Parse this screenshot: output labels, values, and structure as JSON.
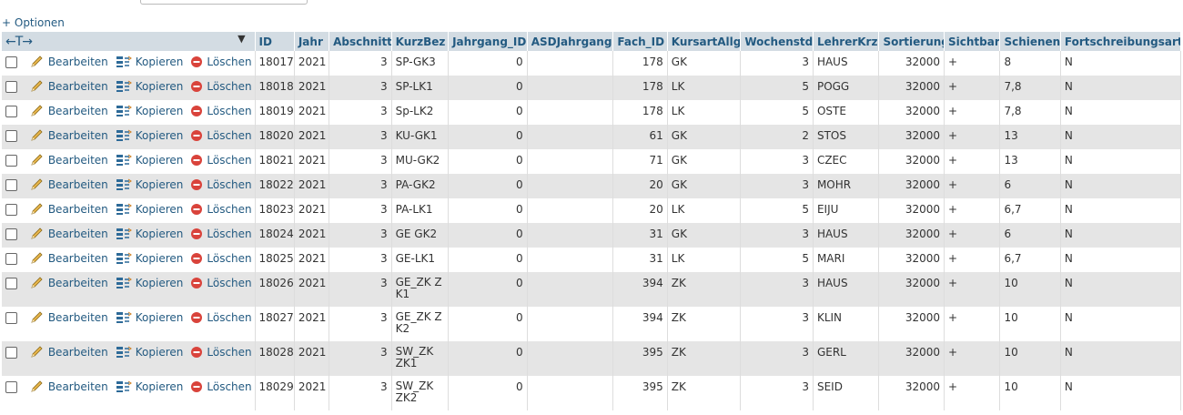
{
  "top": {
    "options_link": "+ Optionen"
  },
  "table": {
    "control_arrows": "←T→",
    "sort_indicator": "▼",
    "columns": [
      "ID",
      "Jahr",
      "Abschnitt",
      "KurzBez",
      "Jahrgang_ID",
      "ASDJahrgang",
      "Fach_ID",
      "KursartAllg",
      "Wochenstd",
      "LehrerKrz",
      "Sortierung",
      "Sichtbar",
      "Schienen",
      "Fortschreibungsart"
    ],
    "actions": {
      "edit": "Bearbeiten",
      "copy": "Kopieren",
      "delete": "Löschen"
    },
    "rows": [
      [
        "18017",
        "2021",
        "3",
        "SP-GK3",
        "0",
        "",
        "178",
        "GK",
        "3",
        "HAUS",
        "32000",
        "+",
        "8",
        "N"
      ],
      [
        "18018",
        "2021",
        "3",
        "SP-LK1",
        "0",
        "",
        "178",
        "LK",
        "5",
        "POGG",
        "32000",
        "+",
        "7,8",
        "N"
      ],
      [
        "18019",
        "2021",
        "3",
        "Sp-LK2",
        "0",
        "",
        "178",
        "LK",
        "5",
        "OSTE",
        "32000",
        "+",
        "7,8",
        "N"
      ],
      [
        "18020",
        "2021",
        "3",
        "KU-GK1",
        "0",
        "",
        "61",
        "GK",
        "2",
        "STOS",
        "32000",
        "+",
        "13",
        "N"
      ],
      [
        "18021",
        "2021",
        "3",
        "MU-GK2",
        "0",
        "",
        "71",
        "GK",
        "3",
        "CZEC",
        "32000",
        "+",
        "13",
        "N"
      ],
      [
        "18022",
        "2021",
        "3",
        "PA-GK2",
        "0",
        "",
        "20",
        "GK",
        "3",
        "MOHR",
        "32000",
        "+",
        "6",
        "N"
      ],
      [
        "18023",
        "2021",
        "3",
        "PA-LK1",
        "0",
        "",
        "20",
        "LK",
        "5",
        "EIJU",
        "32000",
        "+",
        "6,7",
        "N"
      ],
      [
        "18024",
        "2021",
        "3",
        "GE GK2",
        "0",
        "",
        "31",
        "GK",
        "3",
        "HAUS",
        "32000",
        "+",
        "6",
        "N"
      ],
      [
        "18025",
        "2021",
        "3",
        "GE-LK1",
        "0",
        "",
        "31",
        "LK",
        "5",
        "MARI",
        "32000",
        "+",
        "6,7",
        "N"
      ],
      [
        "18026",
        "2021",
        "3",
        "GE_ZK ZK1",
        "0",
        "",
        "394",
        "ZK",
        "3",
        "HAUS",
        "32000",
        "+",
        "10",
        "N"
      ],
      [
        "18027",
        "2021",
        "3",
        "GE_ZK ZK2",
        "0",
        "",
        "394",
        "ZK",
        "3",
        "KLIN",
        "32000",
        "+",
        "10",
        "N"
      ],
      [
        "18028",
        "2021",
        "3",
        "SW_ZK ZK1",
        "0",
        "",
        "395",
        "ZK",
        "3",
        "GERL",
        "32000",
        "+",
        "10",
        "N"
      ],
      [
        "18029",
        "2021",
        "3",
        "SW_ZK ZK2",
        "0",
        "",
        "395",
        "ZK",
        "3",
        "SEID",
        "32000",
        "+",
        "10",
        "N"
      ]
    ]
  }
}
